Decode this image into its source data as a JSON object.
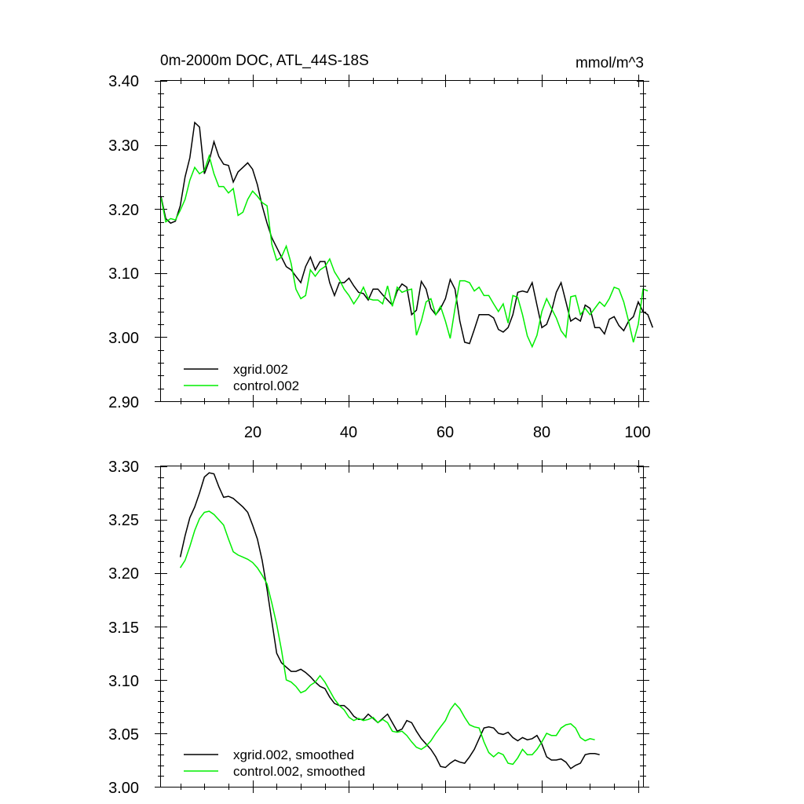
{
  "colors": {
    "xgrid": "#000000",
    "control": "#00ee00",
    "axis": "#000000",
    "background": "#ffffff"
  },
  "chart_data": [
    {
      "type": "line",
      "title": "0m-2000m DOC, ATL_44S-18S",
      "units": "mmol/m^3",
      "xlim": [
        1,
        101
      ],
      "ylim": [
        2.9,
        3.4
      ],
      "yticks": [
        "2.90",
        "3.00",
        "3.10",
        "3.20",
        "3.30",
        "3.40"
      ],
      "xticks": [
        "20",
        "40",
        "60",
        "80",
        "100"
      ],
      "legend_position": "bottom-left",
      "series": [
        {
          "name": "xgrid.002",
          "color_key": "xgrid",
          "x_start": 1,
          "values": [
            3.22,
            3.185,
            3.178,
            3.181,
            3.205,
            3.25,
            3.28,
            3.335,
            3.328,
            3.255,
            3.275,
            3.305,
            3.282,
            3.27,
            3.268,
            3.242,
            3.258,
            3.265,
            3.272,
            3.262,
            3.238,
            3.205,
            3.178,
            3.155,
            3.14,
            3.125,
            3.11,
            3.105,
            3.095,
            3.085,
            3.11,
            3.125,
            3.105,
            3.118,
            3.118,
            3.085,
            3.065,
            3.085,
            3.085,
            3.092,
            3.08,
            3.07,
            3.068,
            3.058,
            3.075,
            3.075,
            3.066,
            3.058,
            3.05,
            3.072,
            3.083,
            3.078,
            3.035,
            3.042,
            3.087,
            3.075,
            3.045,
            3.035,
            3.045,
            3.06,
            3.09,
            3.075,
            3.025,
            2.992,
            2.99,
            3.012,
            3.035,
            3.035,
            3.035,
            3.03,
            3.012,
            3.008,
            3.015,
            3.035,
            3.07,
            3.072,
            3.07,
            3.085,
            3.05,
            3.015,
            3.02,
            3.04,
            3.07,
            3.085,
            3.055,
            3.025,
            3.03,
            3.025,
            3.05,
            3.045,
            3.015,
            3.015,
            3.005,
            3.028,
            3.032,
            3.018,
            3.01,
            3.025,
            3.032,
            3.055,
            3.04,
            3.035,
            3.015
          ]
        },
        {
          "name": "control.002",
          "color_key": "control",
          "x_start": 1,
          "values": [
            3.218,
            3.18,
            3.185,
            3.183,
            3.198,
            3.215,
            3.245,
            3.265,
            3.255,
            3.26,
            3.283,
            3.255,
            3.235,
            3.235,
            3.225,
            3.232,
            3.19,
            3.195,
            3.215,
            3.228,
            3.22,
            3.21,
            3.205,
            3.145,
            3.12,
            3.125,
            3.142,
            3.115,
            3.075,
            3.06,
            3.065,
            3.105,
            3.095,
            3.105,
            3.11,
            3.122,
            3.102,
            3.09,
            3.075,
            3.065,
            3.052,
            3.063,
            3.078,
            3.06,
            3.058,
            3.058,
            3.052,
            3.08,
            3.048,
            3.078,
            3.07,
            3.073,
            3.075,
            3.003,
            3.025,
            3.055,
            3.06,
            3.035,
            3.048,
            3.025,
            2.998,
            3.045,
            3.088,
            3.088,
            3.085,
            3.072,
            3.078,
            3.065,
            3.065,
            3.052,
            3.04,
            3.052,
            3.022,
            3.065,
            3.062,
            3.035,
            3.002,
            2.985,
            3.003,
            3.04,
            3.06,
            3.045,
            3.03,
            3.01,
            3.0,
            3.063,
            3.065,
            3.035,
            3.045,
            3.035,
            3.045,
            3.055,
            3.048,
            3.06,
            3.078,
            3.075,
            3.055,
            3.025,
            2.992,
            3.02,
            3.075,
            3.072
          ]
        }
      ]
    },
    {
      "type": "line",
      "title": "",
      "xlim": [
        1,
        101
      ],
      "ylim": [
        3.0,
        3.3
      ],
      "yticks": [
        "3.00",
        "3.05",
        "3.10",
        "3.15",
        "3.20",
        "3.25",
        "3.30"
      ],
      "legend_position": "bottom-left",
      "series": [
        {
          "name": "xgrid.002, smoothed",
          "color_key": "xgrid",
          "x_start": 5,
          "values": [
            3.215,
            3.235,
            3.252,
            3.262,
            3.275,
            3.29,
            3.294,
            3.293,
            3.281,
            3.271,
            3.272,
            3.27,
            3.266,
            3.262,
            3.257,
            3.245,
            3.232,
            3.212,
            3.185,
            3.155,
            3.125,
            3.116,
            3.112,
            3.108,
            3.108,
            3.11,
            3.107,
            3.103,
            3.098,
            3.094,
            3.092,
            3.084,
            3.078,
            3.076,
            3.076,
            3.072,
            3.066,
            3.063,
            3.063,
            3.068,
            3.064,
            3.06,
            3.064,
            3.068,
            3.06,
            3.052,
            3.054,
            3.062,
            3.06,
            3.052,
            3.045,
            3.04,
            3.035,
            3.028,
            3.019,
            3.018,
            3.022,
            3.025,
            3.023,
            3.022,
            3.028,
            3.035,
            3.045,
            3.055,
            3.056,
            3.055,
            3.05,
            3.049,
            3.051,
            3.046,
            3.043,
            3.046,
            3.044,
            3.045,
            3.048,
            3.04,
            3.028,
            3.025,
            3.025,
            3.026,
            3.023,
            3.017,
            3.02,
            3.022,
            3.03,
            3.031,
            3.031,
            3.03
          ]
        },
        {
          "name": "control.002, smoothed",
          "color_key": "control",
          "x_start": 5,
          "values": [
            3.205,
            3.212,
            3.225,
            3.24,
            3.251,
            3.257,
            3.258,
            3.255,
            3.25,
            3.245,
            3.232,
            3.22,
            3.217,
            3.215,
            3.213,
            3.21,
            3.205,
            3.198,
            3.19,
            3.172,
            3.152,
            3.128,
            3.1,
            3.098,
            3.094,
            3.088,
            3.09,
            3.095,
            3.098,
            3.104,
            3.098,
            3.09,
            3.082,
            3.076,
            3.072,
            3.065,
            3.062,
            3.064,
            3.062,
            3.063,
            3.065,
            3.06,
            3.063,
            3.06,
            3.052,
            3.051,
            3.052,
            3.048,
            3.042,
            3.037,
            3.035,
            3.038,
            3.043,
            3.05,
            3.056,
            3.062,
            3.072,
            3.078,
            3.073,
            3.065,
            3.058,
            3.056,
            3.055,
            3.042,
            3.032,
            3.028,
            3.032,
            3.03,
            3.022,
            3.021,
            3.027,
            3.035,
            3.03,
            3.03,
            3.035,
            3.042,
            3.05,
            3.048,
            3.048,
            3.055,
            3.058,
            3.059,
            3.055,
            3.046,
            3.043,
            3.045,
            3.044
          ]
        }
      ]
    }
  ]
}
